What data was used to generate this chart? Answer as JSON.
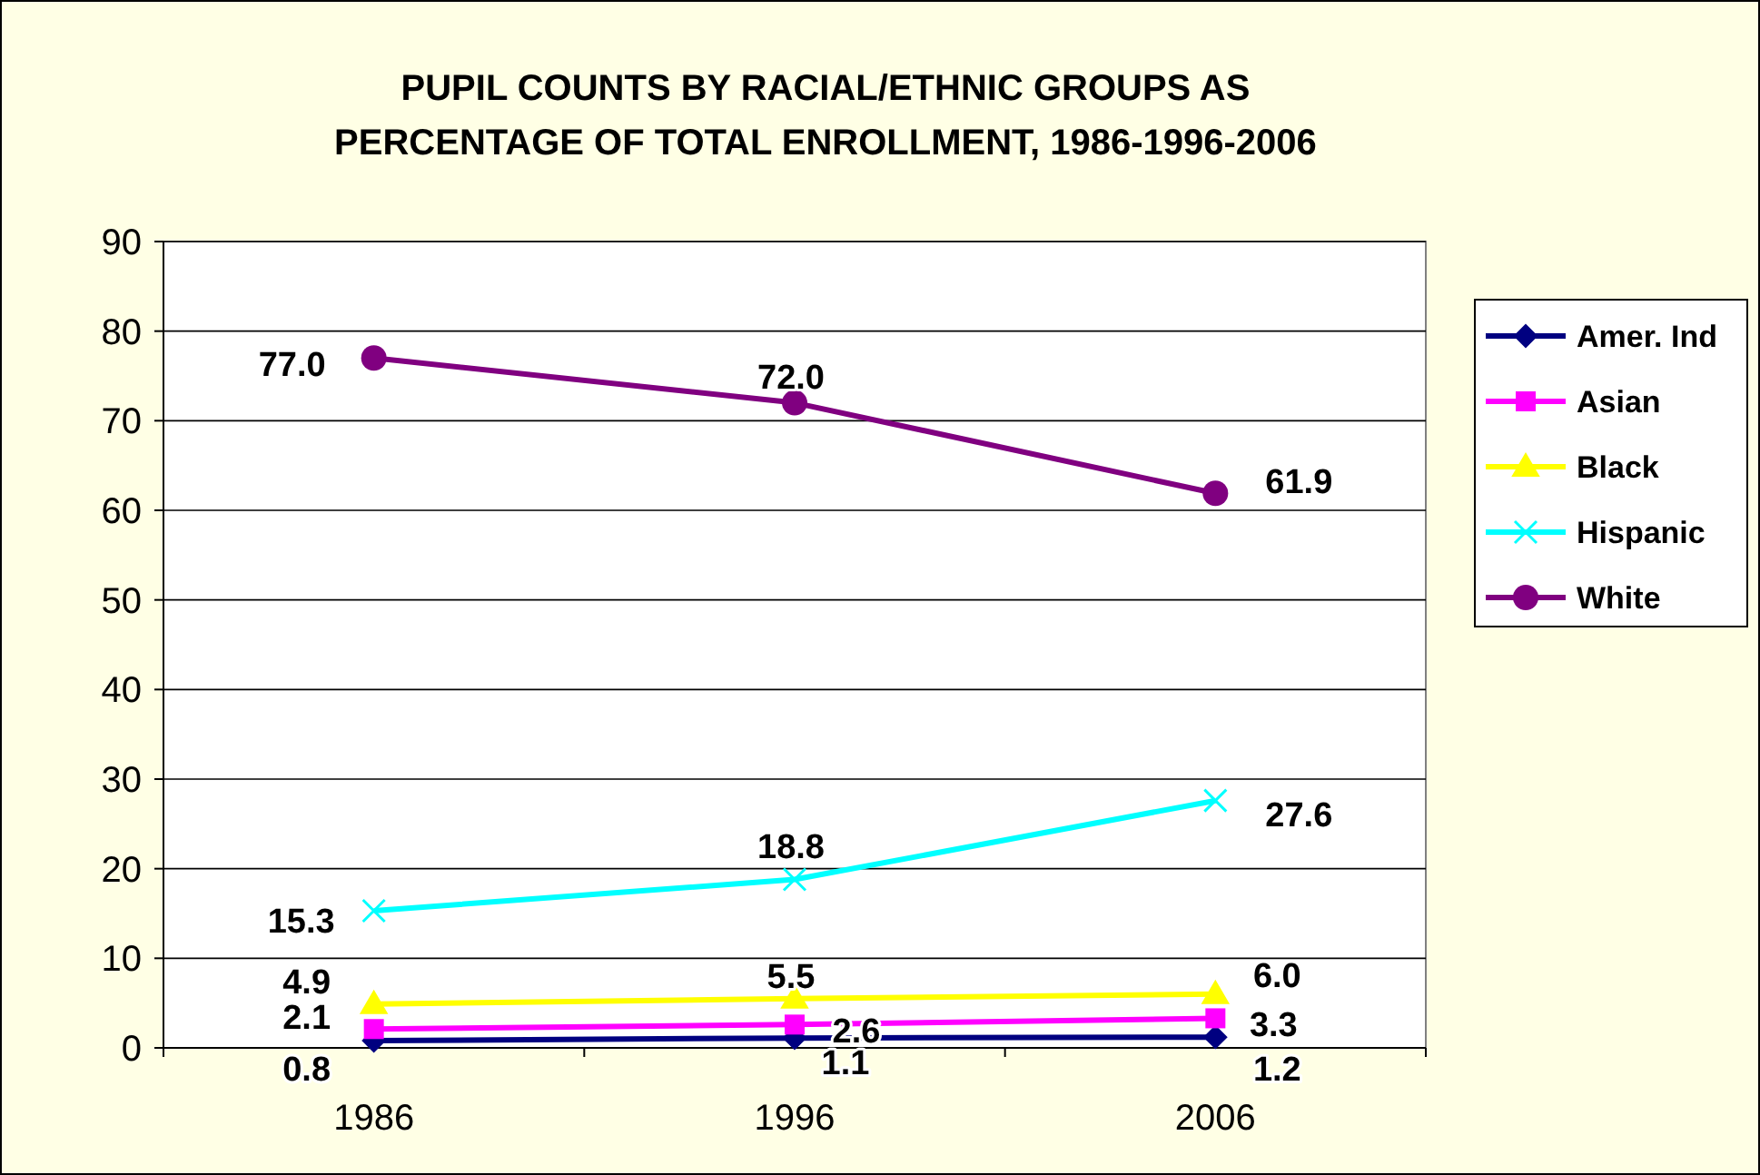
{
  "chart_data": {
    "type": "line",
    "title": "PUPIL COUNTS BY RACIAL/ETHNIC GROUPS AS PERCENTAGE OF TOTAL ENROLLMENT, 1986-1996-2006",
    "categories": [
      "1986",
      "1996",
      "2006"
    ],
    "ylim": [
      0,
      90
    ],
    "yticks": [
      0,
      10,
      20,
      30,
      40,
      50,
      60,
      70,
      80,
      90
    ],
    "grid": "y",
    "legend": "right",
    "series": [
      {
        "name": "Amer. Ind",
        "color": "#000080",
        "marker": "diamond",
        "values": [
          0.8,
          1.1,
          1.2
        ],
        "value_labels": [
          "0.8",
          "1.1",
          "1.2"
        ]
      },
      {
        "name": "Asian",
        "color": "#ff00ff",
        "marker": "square",
        "values": [
          2.1,
          2.6,
          3.3
        ],
        "value_labels": [
          "2.1",
          "2.6",
          "3.3"
        ]
      },
      {
        "name": "Black",
        "color": "#ffff00",
        "marker": "triangle",
        "values": [
          4.9,
          5.5,
          6.0
        ],
        "value_labels": [
          "4.9",
          "5.5",
          "6.0"
        ]
      },
      {
        "name": "Hispanic",
        "color": "#00ffff",
        "marker": "cross",
        "values": [
          15.3,
          18.8,
          27.6
        ],
        "value_labels": [
          "15.3",
          "18.8",
          "27.6"
        ]
      },
      {
        "name": "White",
        "color": "#800080",
        "marker": "circle",
        "values": [
          77.0,
          72.0,
          61.9
        ],
        "value_labels": [
          "77.0",
          "72.0",
          "61.9"
        ]
      }
    ]
  }
}
